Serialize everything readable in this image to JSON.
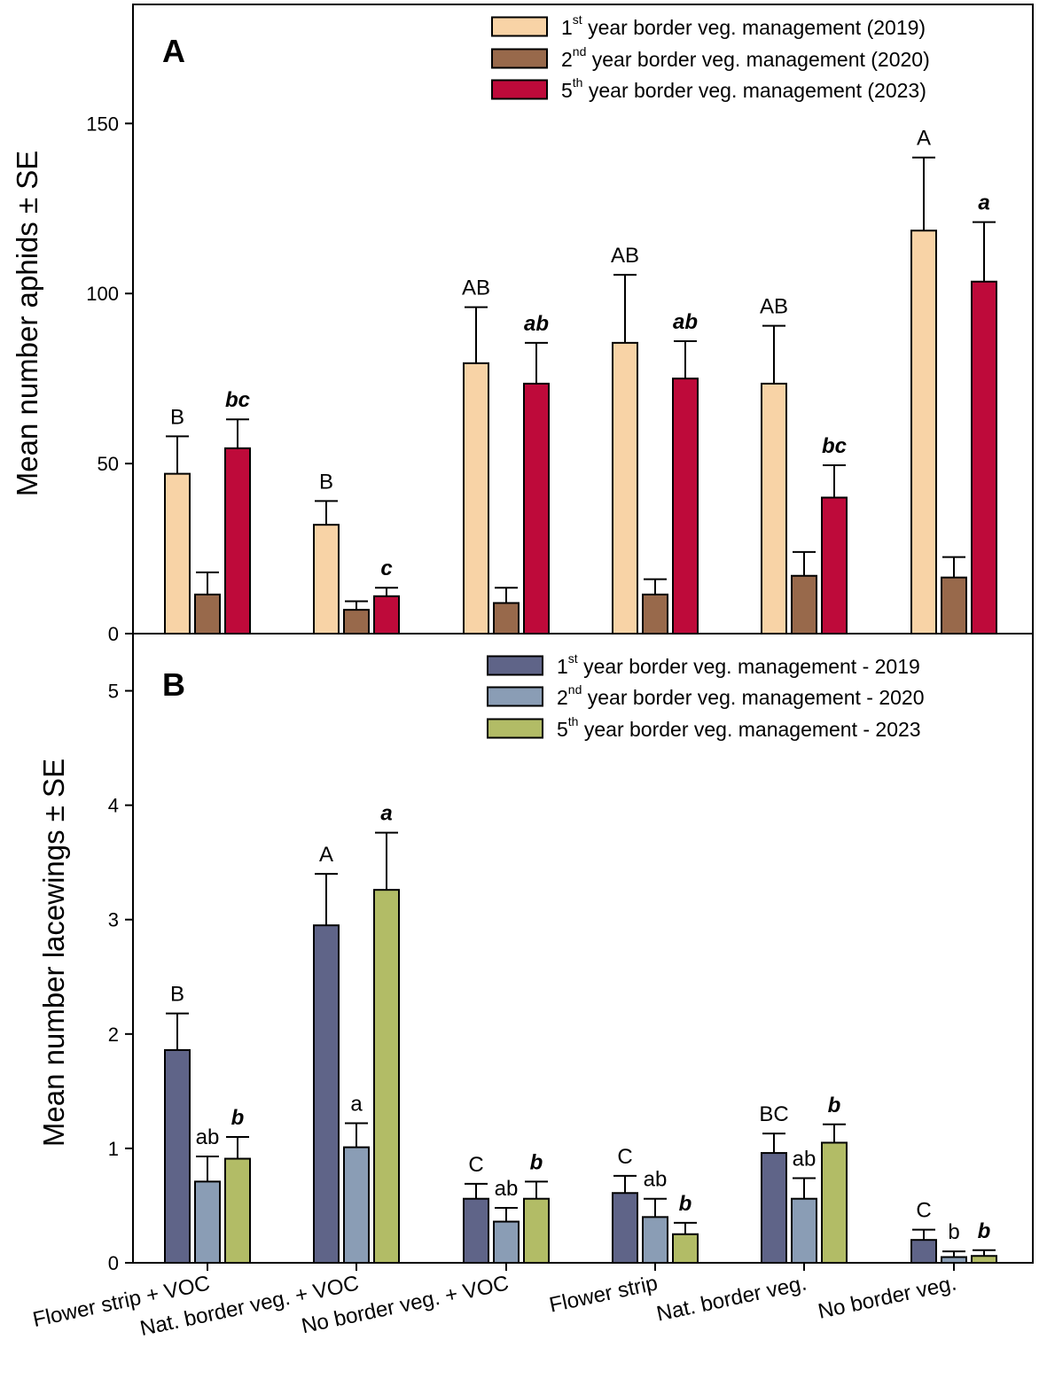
{
  "chart_data": [
    {
      "panel_label": "A",
      "type": "bar",
      "ylabel": "Mean number aphids ± SE",
      "ylim": [
        0,
        185
      ],
      "yticks": [
        "0",
        "50",
        "100",
        "150"
      ],
      "categories": [
        "Flower strip + VOC",
        "Nat. border veg. + VOC",
        "No border veg. + VOC",
        "Flower strip",
        "Nat. border veg.",
        "No border veg."
      ],
      "legend": [
        {
          "base": "1",
          "sup": "st",
          "text": "year border veg. management (2019)"
        },
        {
          "base": "2",
          "sup": "nd",
          "text": "year border veg. management (2020)"
        },
        {
          "base": "5",
          "sup": "th",
          "text": "year border veg. management (2023)"
        }
      ],
      "series": [
        {
          "name": "2019",
          "color": "#F8D3A6",
          "values": [
            47,
            32,
            79.5,
            85.5,
            73.5,
            118.5
          ],
          "errors": [
            11,
            7,
            16.5,
            20,
            17,
            21.5
          ],
          "letters": [
            "B",
            "B",
            "AB",
            "AB",
            "AB",
            "A"
          ],
          "letter_style": "upper"
        },
        {
          "name": "2020",
          "color": "#98694B",
          "values": [
            11.5,
            7,
            9,
            11.5,
            17,
            16.5
          ],
          "errors": [
            6.5,
            2.5,
            4.5,
            4.5,
            7,
            6
          ],
          "letters": [
            "",
            "",
            "",
            "",
            "",
            ""
          ],
          "letter_style": "none"
        },
        {
          "name": "2023",
          "color": "#BE0A3A",
          "values": [
            54.5,
            11,
            73.5,
            75,
            40,
            103.5
          ],
          "errors": [
            8.5,
            2.5,
            12,
            11,
            9.5,
            17.5
          ],
          "letters": [
            "bc",
            "c",
            "ab",
            "ab",
            "bc",
            "a"
          ],
          "letter_style": "bold-italic"
        }
      ]
    },
    {
      "panel_label": "B",
      "type": "bar",
      "ylabel": "Mean number lacewings ± SE",
      "ylim": [
        0,
        5.5
      ],
      "yticks": [
        "0",
        "1",
        "2",
        "3",
        "4",
        "5"
      ],
      "categories": [
        "Flower strip + VOC",
        "Nat. border veg. + VOC",
        "No border veg. + VOC",
        "Flower strip",
        "Nat. border veg.",
        "No border veg."
      ],
      "legend": [
        {
          "base": "1",
          "sup": "st",
          "text": "year border veg. management - 2019"
        },
        {
          "base": "2",
          "sup": "nd",
          "text": "year border veg. management - 2020"
        },
        {
          "base": "5",
          "sup": "th",
          "text": "year border veg. management - 2023"
        }
      ],
      "series": [
        {
          "name": "2019",
          "color": "#5F6488",
          "values": [
            1.86,
            2.95,
            0.56,
            0.61,
            0.96,
            0.2
          ],
          "errors": [
            0.32,
            0.45,
            0.13,
            0.15,
            0.17,
            0.09
          ],
          "letters": [
            "B",
            "A",
            "C",
            "C",
            "BC",
            "C"
          ],
          "letter_style": "upper"
        },
        {
          "name": "2020",
          "color": "#8A9DB5",
          "values": [
            0.71,
            1.01,
            0.36,
            0.4,
            0.56,
            0.05
          ],
          "errors": [
            0.22,
            0.21,
            0.12,
            0.16,
            0.18,
            0.05
          ],
          "letters": [
            "ab",
            "a",
            "ab",
            "ab",
            "ab",
            "b"
          ],
          "letter_style": "lower"
        },
        {
          "name": "2023",
          "color": "#B2BC66",
          "values": [
            0.91,
            3.26,
            0.56,
            0.25,
            1.05,
            0.06
          ],
          "errors": [
            0.19,
            0.5,
            0.15,
            0.1,
            0.16,
            0.05
          ],
          "letters": [
            "b",
            "a",
            "b",
            "b",
            "b",
            "b"
          ],
          "letter_style": "bold-italic"
        }
      ]
    }
  ]
}
